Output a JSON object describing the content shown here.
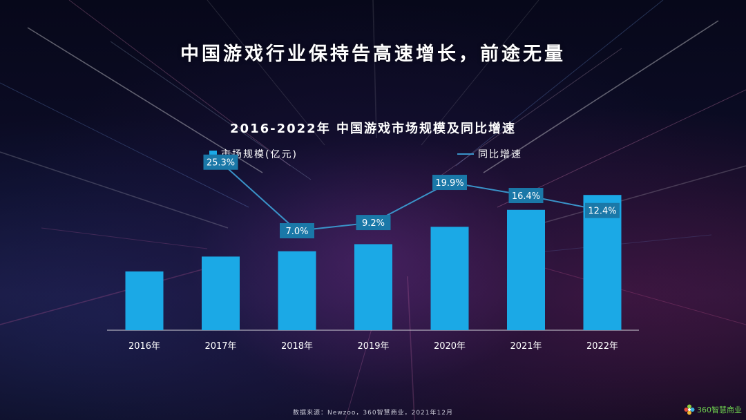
{
  "page": {
    "main_title": "中国游戏行业保持告高速增长，前途无量",
    "source": "数据来源：Newzoo，360智慧商业，2021年12月",
    "logo_text": "360智慧商业"
  },
  "chart_data": {
    "type": "bar",
    "title": "2016-2022年 中国游戏市场规模及同比增速",
    "categories": [
      "2016年",
      "2017年",
      "2018年",
      "2019年",
      "2020年",
      "2021年",
      "2022年"
    ],
    "series": [
      {
        "name": "市场规模(亿元)",
        "type": "bar",
        "values": [
          1660,
          2080,
          2230,
          2430,
          2920,
          3400,
          3820
        ]
      },
      {
        "name": "同比增速",
        "type": "line",
        "values": [
          null,
          25.3,
          7.0,
          9.2,
          19.9,
          16.4,
          12.4
        ],
        "labels": [
          "",
          "25.3%",
          "7.0%",
          "9.2%",
          "19.9%",
          "16.4%",
          "12.4%"
        ],
        "ylim": [
          0,
          40
        ]
      }
    ],
    "ylim": [
      0,
      4000
    ],
    "grid": false,
    "legend": "top",
    "colors": {
      "bar": "#1ba9e6",
      "line": "#3a93c9",
      "label_bg": "#1a78a8",
      "axis": "#d0d0d8"
    }
  }
}
